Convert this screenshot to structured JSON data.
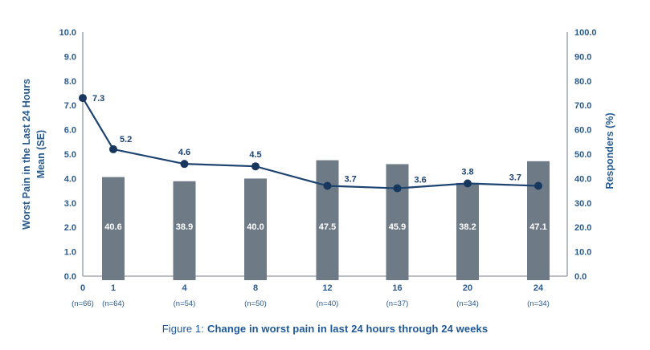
{
  "caption": {
    "prefix": "Figure 1:",
    "text": "Change in worst pain in last 24 hours through 24 weeks"
  },
  "chart_data": {
    "type": "bar+line combo, dual axis",
    "categories": [
      "0",
      "1",
      "4",
      "8",
      "12",
      "16",
      "20",
      "24"
    ],
    "n_labels": [
      "(n=66)",
      "(n=64)",
      "(n=54)",
      "(n=50)",
      "(n=40)",
      "(n=37)",
      "(n=34)",
      "(n=34)"
    ],
    "series": [
      {
        "name": "Worst Pain in the Last 24 Hours Mean (SE)",
        "type": "line",
        "axis": "left",
        "values": [
          7.3,
          5.2,
          4.6,
          4.5,
          3.7,
          3.6,
          3.8,
          3.7
        ]
      },
      {
        "name": "Responders (%)",
        "type": "bar",
        "axis": "right",
        "values": [
          null,
          40.6,
          38.9,
          40.0,
          47.5,
          45.9,
          38.2,
          47.1
        ]
      }
    ],
    "left_axis": {
      "label_lines": [
        "Worst Pain in the Last 24 Hours",
        "Mean (SE)"
      ],
      "min": 0,
      "max": 10,
      "ticks": [
        "0.0",
        "1.0",
        "2.0",
        "3.0",
        "4.0",
        "5.0",
        "6.0",
        "7.0",
        "8.0",
        "9.0",
        "10.0"
      ]
    },
    "right_axis": {
      "label": "Responders (%)",
      "min": 0,
      "max": 100,
      "ticks": [
        "0.0",
        "10.0",
        "20.0",
        "30.0",
        "40.0",
        "50.0",
        "60.0",
        "70.0",
        "80.0",
        "90.0",
        "100.0"
      ]
    },
    "grid": false,
    "legend": "none"
  },
  "colors": {
    "line_navy": "#1d4370",
    "marker_navy": "#17375e",
    "text_navy": "#2a5a8c",
    "value_label_navy": "#1d4370",
    "bar_gray": "#6e7b87",
    "axis_gray": "#a5abb3",
    "bar_label_white": "#ffffff"
  }
}
